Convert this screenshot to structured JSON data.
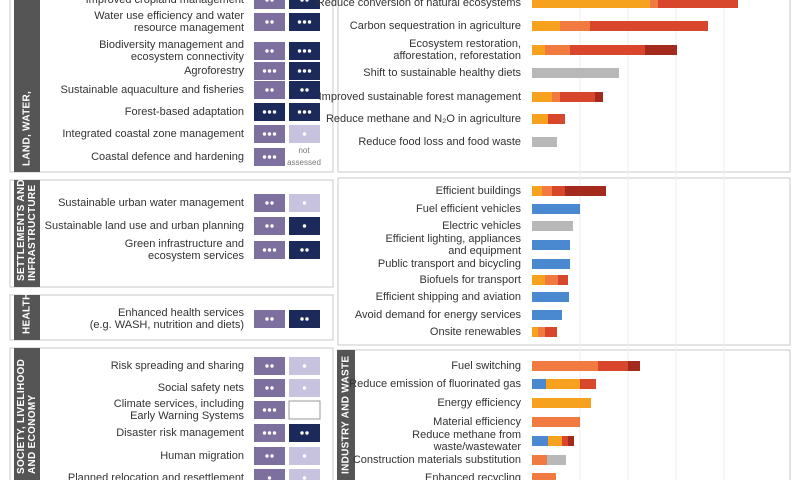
{
  "adaptation": [
    {
      "sector": [
        "LAND, WATER,"
      ],
      "options": [
        {
          "label": [
            "Improved cropland management"
          ],
          "dots1": 2,
          "color1": "#7d6f9e",
          "dots2": 2,
          "color2": "#1b2a5a"
        },
        {
          "label": [
            "Water use efficiency and water",
            "resource management"
          ],
          "dots1": 2,
          "color1": "#7d6f9e",
          "dots2": 3,
          "color2": "#1b2a5a"
        },
        {
          "label": [
            "Biodiversity management and",
            "ecosystem connectivity"
          ],
          "dots1": 2,
          "color1": "#7d6f9e",
          "dots2": 3,
          "color2": "#1b2a5a"
        },
        {
          "label": [
            "Agroforestry"
          ],
          "dots1": 3,
          "color1": "#7d6f9e",
          "dots2": 3,
          "color2": "#1b2a5a"
        },
        {
          "label": [
            "Sustainable aquaculture and fisheries"
          ],
          "dots1": 2,
          "color1": "#7d6f9e",
          "dots2": 2,
          "color2": "#1b2a5a"
        },
        {
          "label": [
            "Forest-based adaptation"
          ],
          "dots1": 3,
          "color1": "#1b2a5a",
          "dots2": 3,
          "color2": "#1b2a5a"
        },
        {
          "label": [
            "Integrated coastal zone management"
          ],
          "dots1": 3,
          "color1": "#7d6f9e",
          "dots2": 1,
          "color2": "#c7c2de"
        },
        {
          "label": [
            "Coastal defence and hardening"
          ],
          "dots1": 3,
          "color1": "#7d6f9e",
          "note": [
            "not",
            "assessed"
          ]
        }
      ]
    },
    {
      "sector": [
        "SETTLEMENTS AND",
        "INFRASTRUCTURE"
      ],
      "options": [
        {
          "label": [
            "Sustainable urban water management"
          ],
          "dots1": 2,
          "color1": "#7d6f9e",
          "dots2": 1,
          "color2": "#c7c2de"
        },
        {
          "label": [
            "Sustainable land use and urban planning"
          ],
          "dots1": 2,
          "color1": "#7d6f9e",
          "dots2": 1,
          "color2": "#1b2a5a"
        },
        {
          "label": [
            "Green infrastructure and",
            "ecosystem services"
          ],
          "dots1": 3,
          "color1": "#7d6f9e",
          "dots2": 2,
          "color2": "#1b2a5a"
        }
      ]
    },
    {
      "sector": [
        "HEALTH"
      ],
      "options": [
        {
          "label": [
            "Enhanced health services",
            "(e.g. WASH, nutrition and diets)"
          ],
          "dots1": 2,
          "color1": "#7d6f9e",
          "dots2": 2,
          "color2": "#1b2a5a"
        }
      ]
    },
    {
      "sector": [
        "SOCIETY, LIVELIHOOD",
        "AND ECONOMY"
      ],
      "options": [
        {
          "label": [
            "Risk spreading and sharing"
          ],
          "dots1": 2,
          "color1": "#7d6f9e",
          "dots2": 1,
          "color2": "#c7c2de"
        },
        {
          "label": [
            "Social safety nets"
          ],
          "dots1": 2,
          "color1": "#7d6f9e",
          "dots2": 1,
          "color2": "#c7c2de"
        },
        {
          "label": [
            "Climate services, including",
            "Early Warning Systems"
          ],
          "dots1": 3,
          "color1": "#7d6f9e",
          "dots2": 0,
          "color2": "#ffffff"
        },
        {
          "label": [
            "Disaster risk management"
          ],
          "dots1": 3,
          "color1": "#7d6f9e",
          "dots2": 2,
          "color2": "#1b2a5a"
        },
        {
          "label": [
            "Human migration"
          ],
          "dots1": 2,
          "color1": "#7d6f9e",
          "dots2": 1,
          "color2": "#c7c2de"
        },
        {
          "label": [
            "Planned relocation and resettlement"
          ],
          "dots1": 1,
          "color1": "#7d6f9e",
          "dots2": 1,
          "color2": "#c7c2de"
        }
      ]
    }
  ],
  "mitigation": [
    {
      "options": [
        {
          "label": [
            "Reduce conversion of natural ecosystems"
          ],
          "segments": [
            {
              "value": 118,
              "color": "#f6a21e"
            },
            {
              "value": 8,
              "color": "#f07a3f"
            },
            {
              "value": 80,
              "color": "#d8472b"
            }
          ]
        },
        {
          "label": [
            "Carbon sequestration in agriculture"
          ],
          "segments": [
            {
              "value": 28,
              "color": "#f6a21e"
            },
            {
              "value": 30,
              "color": "#f07a3f"
            },
            {
              "value": 118,
              "color": "#d8472b"
            }
          ]
        },
        {
          "label": [
            "Ecosystem restoration,",
            "afforestation, reforestation"
          ],
          "segments": [
            {
              "value": 13,
              "color": "#f6a21e"
            },
            {
              "value": 25,
              "color": "#f07a3f"
            },
            {
              "value": 75,
              "color": "#d8472b"
            },
            {
              "value": 32,
              "color": "#a52a1e"
            }
          ]
        },
        {
          "label": [
            "Shift to sustainable healthy diets"
          ],
          "segments": [
            {
              "value": 87,
              "color": "#b8b8b8"
            }
          ]
        },
        {
          "label": [
            "Improved sustainable forest management"
          ],
          "segments": [
            {
              "value": 20,
              "color": "#f6a21e"
            },
            {
              "value": 8,
              "color": "#f07a3f"
            },
            {
              "value": 35,
              "color": "#d8472b"
            },
            {
              "value": 8,
              "color": "#a52a1e"
            }
          ]
        },
        {
          "label": [
            "Reduce methane and N₂O in agriculture"
          ],
          "segments": [
            {
              "value": 16,
              "color": "#f6a21e"
            },
            {
              "value": 17,
              "color": "#d8472b"
            }
          ]
        },
        {
          "label": [
            "Reduce food loss and food waste"
          ],
          "segments": [
            {
              "value": 25,
              "color": "#b8b8b8"
            }
          ]
        }
      ]
    },
    {
      "options": [
        {
          "label": [
            "Efficient buildings"
          ],
          "segments": [
            {
              "value": 10,
              "color": "#f6a21e"
            },
            {
              "value": 10,
              "color": "#f07a3f"
            },
            {
              "value": 13,
              "color": "#d8472b"
            },
            {
              "value": 41,
              "color": "#a52a1e"
            }
          ]
        },
        {
          "label": [
            "Fuel efficient vehicles"
          ],
          "segments": [
            {
              "value": 48,
              "color": "#4a88cf"
            }
          ]
        },
        {
          "label": [
            "Electric vehicles"
          ],
          "segments": [
            {
              "value": 41,
              "color": "#b8b8b8"
            }
          ]
        },
        {
          "label": [
            "Efficient lighting, appliances",
            "and equipment"
          ],
          "segments": [
            {
              "value": 38,
              "color": "#4a88cf"
            }
          ]
        },
        {
          "label": [
            "Public transport and bicycling"
          ],
          "segments": [
            {
              "value": 38,
              "color": "#4a88cf"
            }
          ]
        },
        {
          "label": [
            "Biofuels for transport"
          ],
          "segments": [
            {
              "value": 13,
              "color": "#f6a21e"
            },
            {
              "value": 13,
              "color": "#f07a3f"
            },
            {
              "value": 10,
              "color": "#d8472b"
            }
          ]
        },
        {
          "label": [
            "Efficient shipping and aviation"
          ],
          "segments": [
            {
              "value": 37,
              "color": "#4a88cf"
            }
          ]
        },
        {
          "label": [
            "Avoid demand for energy services"
          ],
          "segments": [
            {
              "value": 30,
              "color": "#4a88cf"
            }
          ]
        },
        {
          "label": [
            "Onsite renewables"
          ],
          "segments": [
            {
              "value": 6,
              "color": "#f6a21e"
            },
            {
              "value": 7,
              "color": "#f07a3f"
            },
            {
              "value": 12,
              "color": "#d8472b"
            }
          ]
        }
      ]
    },
    {
      "sector": [
        "INDUSTRY AND WASTE"
      ],
      "options": [
        {
          "label": [
            "Fuel switching"
          ],
          "segments": [
            {
              "value": 66,
              "color": "#f07a3f"
            },
            {
              "value": 30,
              "color": "#d8472b"
            },
            {
              "value": 12,
              "color": "#a52a1e"
            }
          ]
        },
        {
          "label": [
            "Reduce emission of fluorinated gas"
          ],
          "segments": [
            {
              "value": 14,
              "color": "#4a88cf"
            },
            {
              "value": 34,
              "color": "#f6a21e"
            },
            {
              "value": 16,
              "color": "#d8472b"
            }
          ]
        },
        {
          "label": [
            "Energy efficiency"
          ],
          "segments": [
            {
              "value": 59,
              "color": "#f6a21e"
            }
          ]
        },
        {
          "label": [
            "Material efficiency"
          ],
          "segments": [
            {
              "value": 48,
              "color": "#f07a3f"
            }
          ]
        },
        {
          "label": [
            "Reduce methane from",
            "waste/wastewater"
          ],
          "segments": [
            {
              "value": 16,
              "color": "#4a88cf"
            },
            {
              "value": 14,
              "color": "#f6a21e"
            },
            {
              "value": 6,
              "color": "#d8472b"
            },
            {
              "value": 6,
              "color": "#a52a1e"
            }
          ]
        },
        {
          "label": [
            "Construction materials substitution"
          ],
          "segments": [
            {
              "value": 15,
              "color": "#f07a3f"
            },
            {
              "value": 19,
              "color": "#b8b8b8"
            }
          ]
        },
        {
          "label": [
            "Enhanced recycling"
          ],
          "segments": [
            {
              "value": 24,
              "color": "#f07a3f"
            }
          ]
        }
      ]
    }
  ]
}
